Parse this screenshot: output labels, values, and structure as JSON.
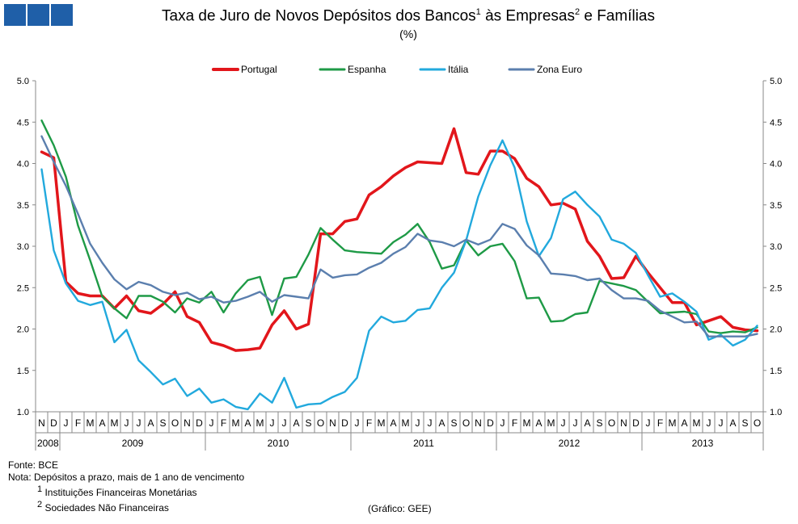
{
  "header": {
    "title_part1": "Taxa de Juro de Novos Depósitos dos Bancos",
    "title_sup1": "1",
    "title_part2": " às Empresas",
    "title_sup2": "2",
    "title_part3": " e Famílias",
    "subtitle": "(%)"
  },
  "colors": {
    "logo": "#1f5fa8",
    "axis": "#888888"
  },
  "chart_data": {
    "type": "line",
    "ylim": [
      1.0,
      5.0
    ],
    "yticks": [
      "1.0",
      "1.5",
      "2.0",
      "2.5",
      "3.0",
      "3.5",
      "4.0",
      "4.5",
      "5.0"
    ],
    "month_labels": [
      "N",
      "D",
      "J",
      "F",
      "M",
      "A",
      "M",
      "J",
      "J",
      "A",
      "S",
      "O",
      "N",
      "D",
      "J",
      "F",
      "M",
      "A",
      "M",
      "J",
      "J",
      "A",
      "S",
      "O",
      "N",
      "D",
      "J",
      "F",
      "M",
      "A",
      "M",
      "J",
      "J",
      "A",
      "S",
      "O",
      "N",
      "D",
      "J",
      "F",
      "M",
      "A",
      "M",
      "J",
      "J",
      "A",
      "S",
      "O",
      "N",
      "D",
      "J",
      "F",
      "M",
      "A",
      "M",
      "J",
      "J",
      "A",
      "S",
      "O"
    ],
    "years": [
      {
        "label": "2008",
        "start": 0,
        "count": 2
      },
      {
        "label": "2009",
        "start": 2,
        "count": 12
      },
      {
        "label": "2010",
        "start": 14,
        "count": 12
      },
      {
        "label": "2011",
        "start": 26,
        "count": 12
      },
      {
        "label": "2012",
        "start": 38,
        "count": 12
      },
      {
        "label": "2013",
        "start": 50,
        "count": 10
      }
    ],
    "series": [
      {
        "name": "Portugal",
        "color": "#e2161b",
        "width": 3.5,
        "values": [
          4.14,
          4.07,
          2.57,
          2.43,
          2.4,
          2.4,
          2.25,
          2.4,
          2.22,
          2.19,
          2.3,
          2.45,
          2.15,
          2.08,
          1.84,
          1.8,
          1.74,
          1.75,
          1.77,
          2.05,
          2.22,
          2.0,
          2.06,
          3.15,
          3.15,
          3.3,
          3.33,
          3.62,
          3.72,
          3.85,
          3.95,
          4.02,
          4.01,
          4.0,
          4.42,
          3.89,
          3.87,
          4.15,
          4.15,
          4.06,
          3.82,
          3.72,
          3.5,
          3.52,
          3.45,
          3.06,
          2.88,
          2.61,
          2.62,
          2.88,
          2.68,
          2.5,
          2.32,
          2.32,
          2.05,
          2.1,
          2.15,
          2.02,
          1.99,
          1.98
        ]
      },
      {
        "name": "Espanha",
        "color": "#1e9a46",
        "width": 2.4,
        "values": [
          4.52,
          4.22,
          3.84,
          3.25,
          2.83,
          2.39,
          2.25,
          2.13,
          2.4,
          2.4,
          2.33,
          2.2,
          2.37,
          2.32,
          2.45,
          2.2,
          2.43,
          2.59,
          2.63,
          2.17,
          2.61,
          2.63,
          2.9,
          3.22,
          3.08,
          2.95,
          2.93,
          2.92,
          2.91,
          3.05,
          3.14,
          3.27,
          3.05,
          2.73,
          2.77,
          3.07,
          2.89,
          3.0,
          3.03,
          2.82,
          2.37,
          2.38,
          2.09,
          2.1,
          2.18,
          2.2,
          2.58,
          2.55,
          2.52,
          2.47,
          2.33,
          2.19,
          2.2,
          2.21,
          2.18,
          1.97,
          1.95,
          1.97,
          1.96,
          2.02
        ]
      },
      {
        "name": "Itália",
        "color": "#22a9dd",
        "width": 2.4,
        "values": [
          3.93,
          2.95,
          2.55,
          2.34,
          2.29,
          2.33,
          1.84,
          1.99,
          1.62,
          1.48,
          1.33,
          1.4,
          1.19,
          1.28,
          1.11,
          1.15,
          1.06,
          1.03,
          1.22,
          1.11,
          1.41,
          1.05,
          1.09,
          1.1,
          1.18,
          1.24,
          1.41,
          1.98,
          2.15,
          2.08,
          2.1,
          2.23,
          2.25,
          2.5,
          2.68,
          3.07,
          3.6,
          3.98,
          4.28,
          3.95,
          3.3,
          2.88,
          3.1,
          3.57,
          3.66,
          3.5,
          3.36,
          3.08,
          3.03,
          2.92,
          2.65,
          2.39,
          2.43,
          2.33,
          2.21,
          1.87,
          1.93,
          1.8,
          1.87,
          2.04
        ]
      },
      {
        "name": "Zona Euro",
        "color": "#5b7fae",
        "width": 2.4,
        "values": [
          4.33,
          4.02,
          3.73,
          3.39,
          3.03,
          2.8,
          2.6,
          2.48,
          2.57,
          2.53,
          2.45,
          2.41,
          2.44,
          2.36,
          2.39,
          2.32,
          2.34,
          2.39,
          2.45,
          2.33,
          2.41,
          2.39,
          2.37,
          2.72,
          2.62,
          2.65,
          2.66,
          2.74,
          2.8,
          2.91,
          2.99,
          3.15,
          3.07,
          3.05,
          3.0,
          3.08,
          3.02,
          3.08,
          3.27,
          3.21,
          3.01,
          2.89,
          2.67,
          2.66,
          2.64,
          2.59,
          2.61,
          2.47,
          2.37,
          2.37,
          2.34,
          2.22,
          2.15,
          2.08,
          2.09,
          1.91,
          1.91,
          1.91,
          1.91,
          1.94
        ]
      }
    ]
  },
  "footnotes": {
    "source": "Fonte: BCE",
    "note": "Nota: Depósitos a prazo, mais de 1 ano de vencimento",
    "fn1_num": "1",
    "fn1_text": " Instituições Financeiras Monetárias",
    "fn2_num": "2",
    "fn2_text": " Sociedades Não Financeiras"
  },
  "credit": "(Gráfico: GEE)"
}
